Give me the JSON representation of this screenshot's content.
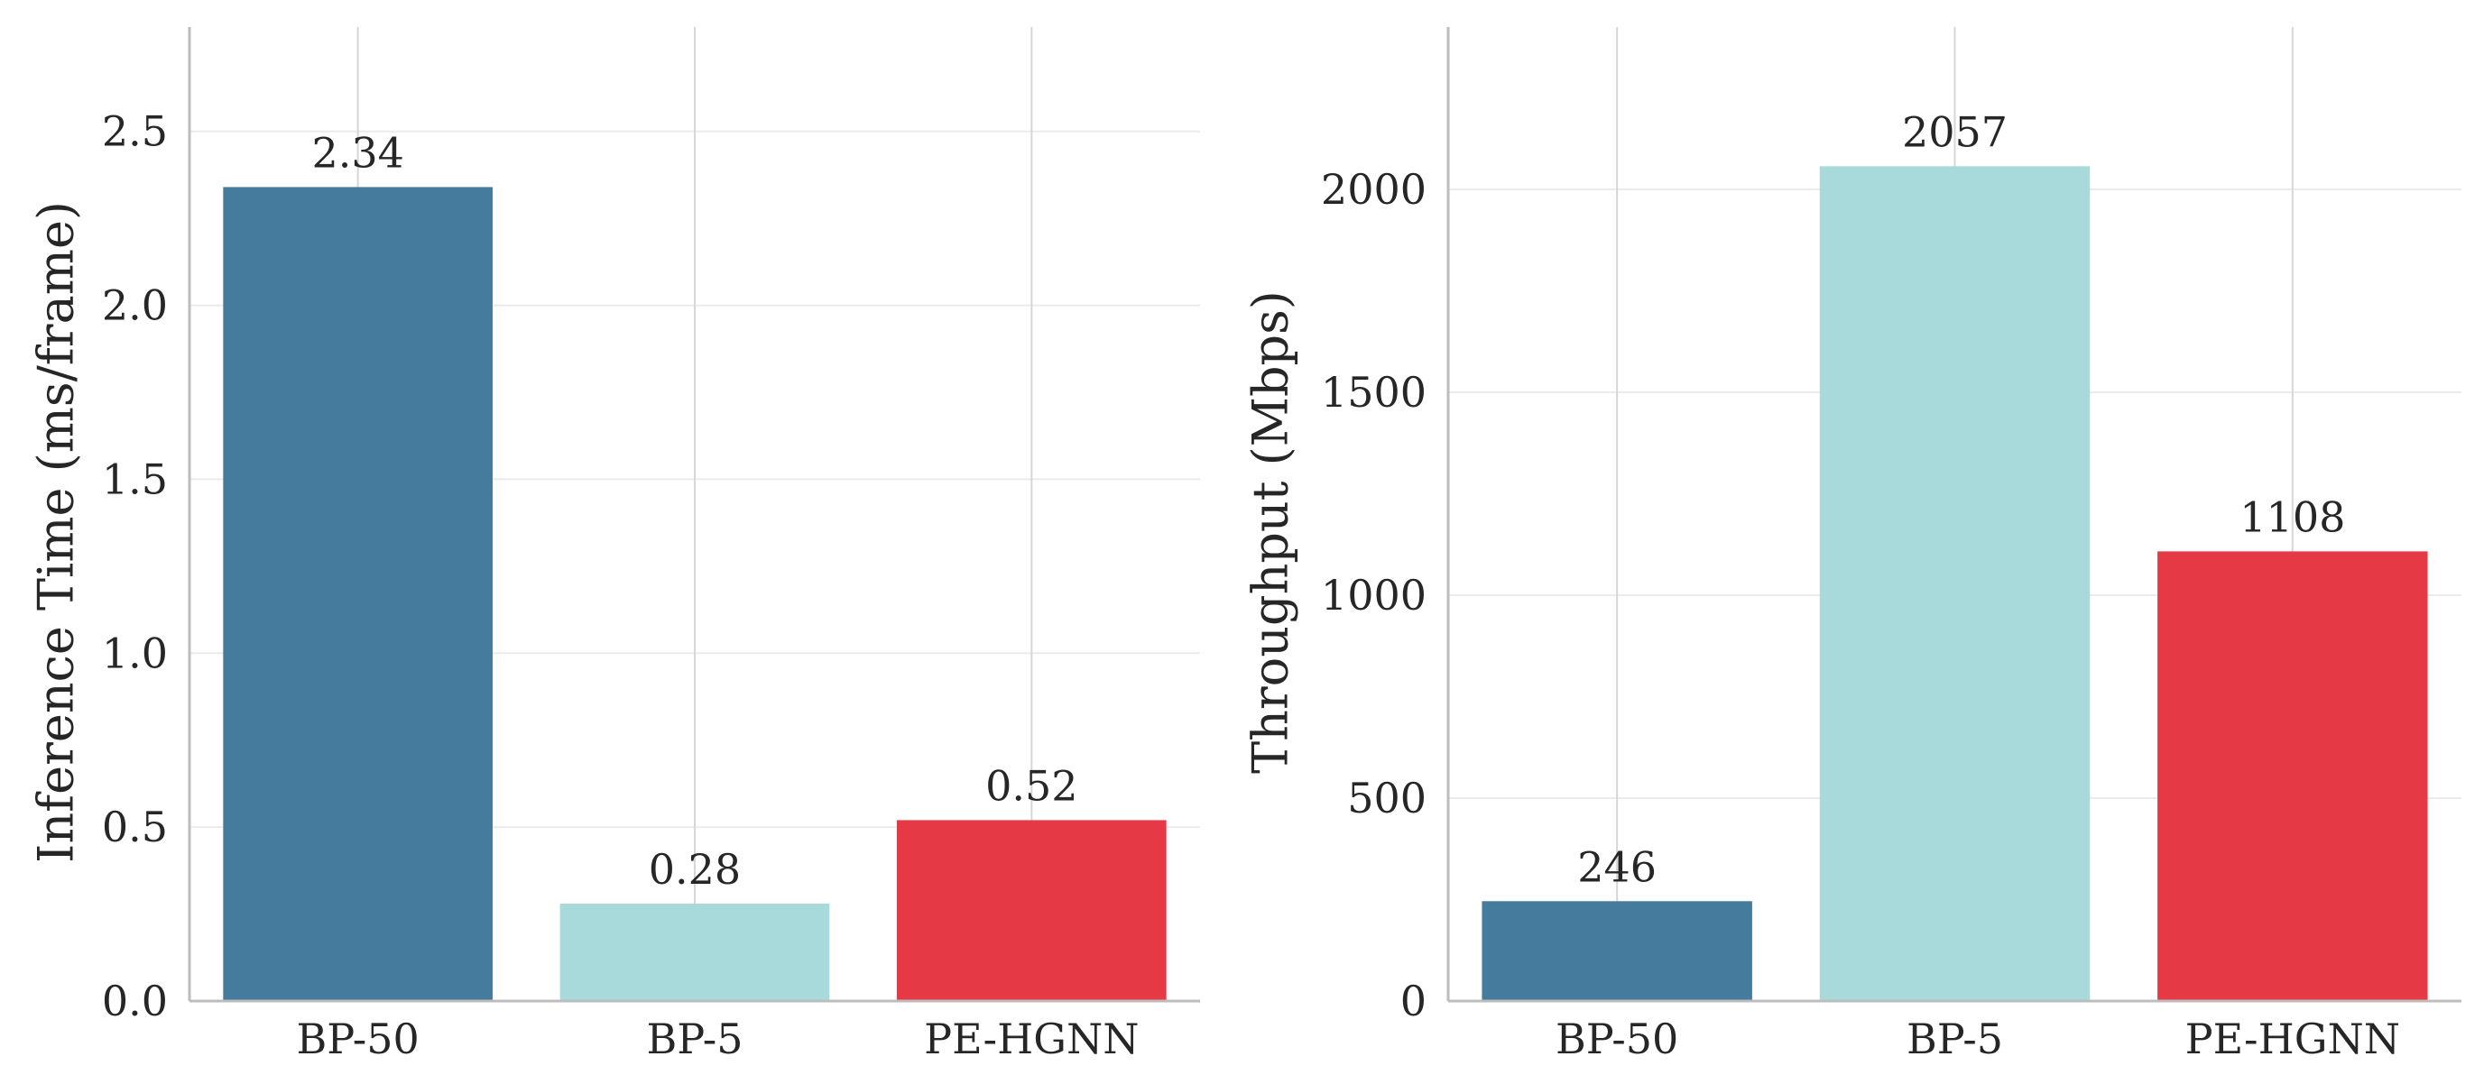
{
  "chart_data": [
    {
      "type": "bar",
      "title": "",
      "xlabel": "",
      "ylabel": "Inference Time (ms/frame)",
      "categories": [
        "BP-50",
        "BP-5",
        "PE-HGNN"
      ],
      "values": [
        2.34,
        0.28,
        0.52
      ],
      "value_labels": [
        "2.34",
        "0.28",
        "0.52"
      ],
      "colors": [
        "#457b9d",
        "#a8dadc",
        "#e63946"
      ],
      "ylim": [
        0,
        2.8
      ],
      "yticks": [
        0.0,
        0.5,
        1.0,
        1.5,
        2.0,
        2.5
      ],
      "ytick_labels": [
        "0.0",
        "0.5",
        "1.0",
        "1.5",
        "2.0",
        "2.5"
      ],
      "grid": true,
      "legend": "none"
    },
    {
      "type": "bar",
      "title": "",
      "xlabel": "",
      "ylabel": "Throughput (Mbps)",
      "categories": [
        "BP-50",
        "BP-5",
        "PE-HGNN"
      ],
      "values": [
        246,
        2057,
        1108
      ],
      "value_labels": [
        "246",
        "2057",
        "1108"
      ],
      "colors": [
        "#457b9d",
        "#a8dadc",
        "#e63946"
      ],
      "ylim": [
        0,
        2400
      ],
      "yticks": [
        0,
        500,
        1000,
        1500,
        2000
      ],
      "ytick_labels": [
        "0",
        "500",
        "1000",
        "1500",
        "2000"
      ],
      "grid": true,
      "legend": "none"
    }
  ]
}
